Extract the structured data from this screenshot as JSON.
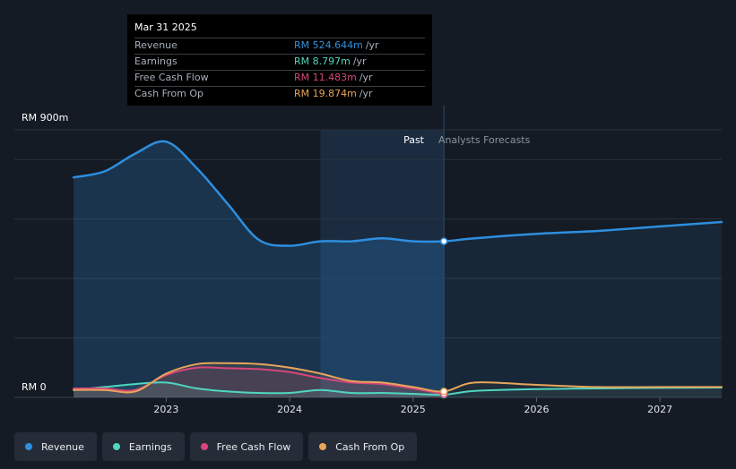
{
  "colors": {
    "revenue": "#2d8fe0",
    "earnings": "#4fd6c0",
    "free_cash_flow": "#d8457c",
    "cash_from_op": "#e8a55a"
  },
  "tooltip": {
    "date": "Mar 31 2025",
    "rows": [
      {
        "label": "Revenue",
        "value": "RM 524.644m",
        "unit": "/yr"
      },
      {
        "label": "Earnings",
        "value": "RM 8.797m",
        "unit": "/yr"
      },
      {
        "label": "Free Cash Flow",
        "value": "RM 11.483m",
        "unit": "/yr"
      },
      {
        "label": "Cash From Op",
        "value": "RM 19.874m",
        "unit": "/yr"
      }
    ]
  },
  "labels": {
    "past": "Past",
    "forecast": "Analysts Forecasts",
    "y_top": "RM 900m",
    "y_bottom": "RM 0"
  },
  "legend": [
    {
      "label": "Revenue",
      "icon": "dot"
    },
    {
      "label": "Earnings",
      "icon": "dot"
    },
    {
      "label": "Free Cash Flow",
      "icon": "dot"
    },
    {
      "label": "Cash From Op",
      "icon": "dot"
    }
  ],
  "chart_data": {
    "type": "line",
    "title": "",
    "ylim": [
      0,
      900
    ],
    "y_unit": "RM m",
    "x_ticks": [
      "2023",
      "2024",
      "2025",
      "2026",
      "2027"
    ],
    "x_tick_values": [
      2023.0,
      2024.0,
      2025.0,
      2026.0,
      2027.0
    ],
    "xlim": [
      2021.77,
      2027.5
    ],
    "past_end": 2025.25,
    "highlight_start": 2024.25,
    "grid": true,
    "legend_position": "bottom",
    "series": [
      {
        "name": "Revenue",
        "x": [
          2022.25,
          2022.5,
          2022.75,
          2023.0,
          2023.25,
          2023.5,
          2023.75,
          2024.0,
          2024.25,
          2024.5,
          2024.75,
          2025.0,
          2025.25,
          2025.5,
          2026.0,
          2026.5,
          2027.0,
          2027.5
        ],
        "y": [
          740,
          760,
          820,
          860,
          770,
          650,
          530,
          510,
          525,
          525,
          535,
          525,
          525,
          535,
          550,
          560,
          575,
          590
        ]
      },
      {
        "name": "Earnings",
        "x": [
          2022.25,
          2022.5,
          2022.75,
          2023.0,
          2023.25,
          2023.5,
          2023.75,
          2024.0,
          2024.25,
          2024.5,
          2024.75,
          2025.0,
          2025.25,
          2025.5,
          2026.0,
          2026.5,
          2027.0,
          2027.5
        ],
        "y": [
          25,
          35,
          45,
          50,
          30,
          20,
          15,
          15,
          25,
          15,
          15,
          12,
          9,
          22,
          28,
          30,
          32,
          33
        ]
      },
      {
        "name": "Free Cash Flow",
        "x": [
          2022.25,
          2022.5,
          2022.75,
          2023.0,
          2023.25,
          2023.5,
          2023.75,
          2024.0,
          2024.25,
          2024.5,
          2024.75,
          2025.0,
          2025.25
        ],
        "y": [
          30,
          30,
          25,
          75,
          100,
          98,
          95,
          85,
          65,
          50,
          45,
          30,
          11
        ]
      },
      {
        "name": "Cash From Op",
        "x": [
          2022.25,
          2022.5,
          2022.75,
          2023.0,
          2023.25,
          2023.5,
          2023.75,
          2024.0,
          2024.25,
          2024.5,
          2024.75,
          2025.0,
          2025.25,
          2025.5,
          2026.0,
          2026.5,
          2027.0,
          2027.5
        ],
        "y": [
          25,
          25,
          20,
          80,
          112,
          115,
          112,
          100,
          80,
          55,
          50,
          35,
          20,
          50,
          42,
          35,
          35,
          35
        ]
      }
    ]
  }
}
